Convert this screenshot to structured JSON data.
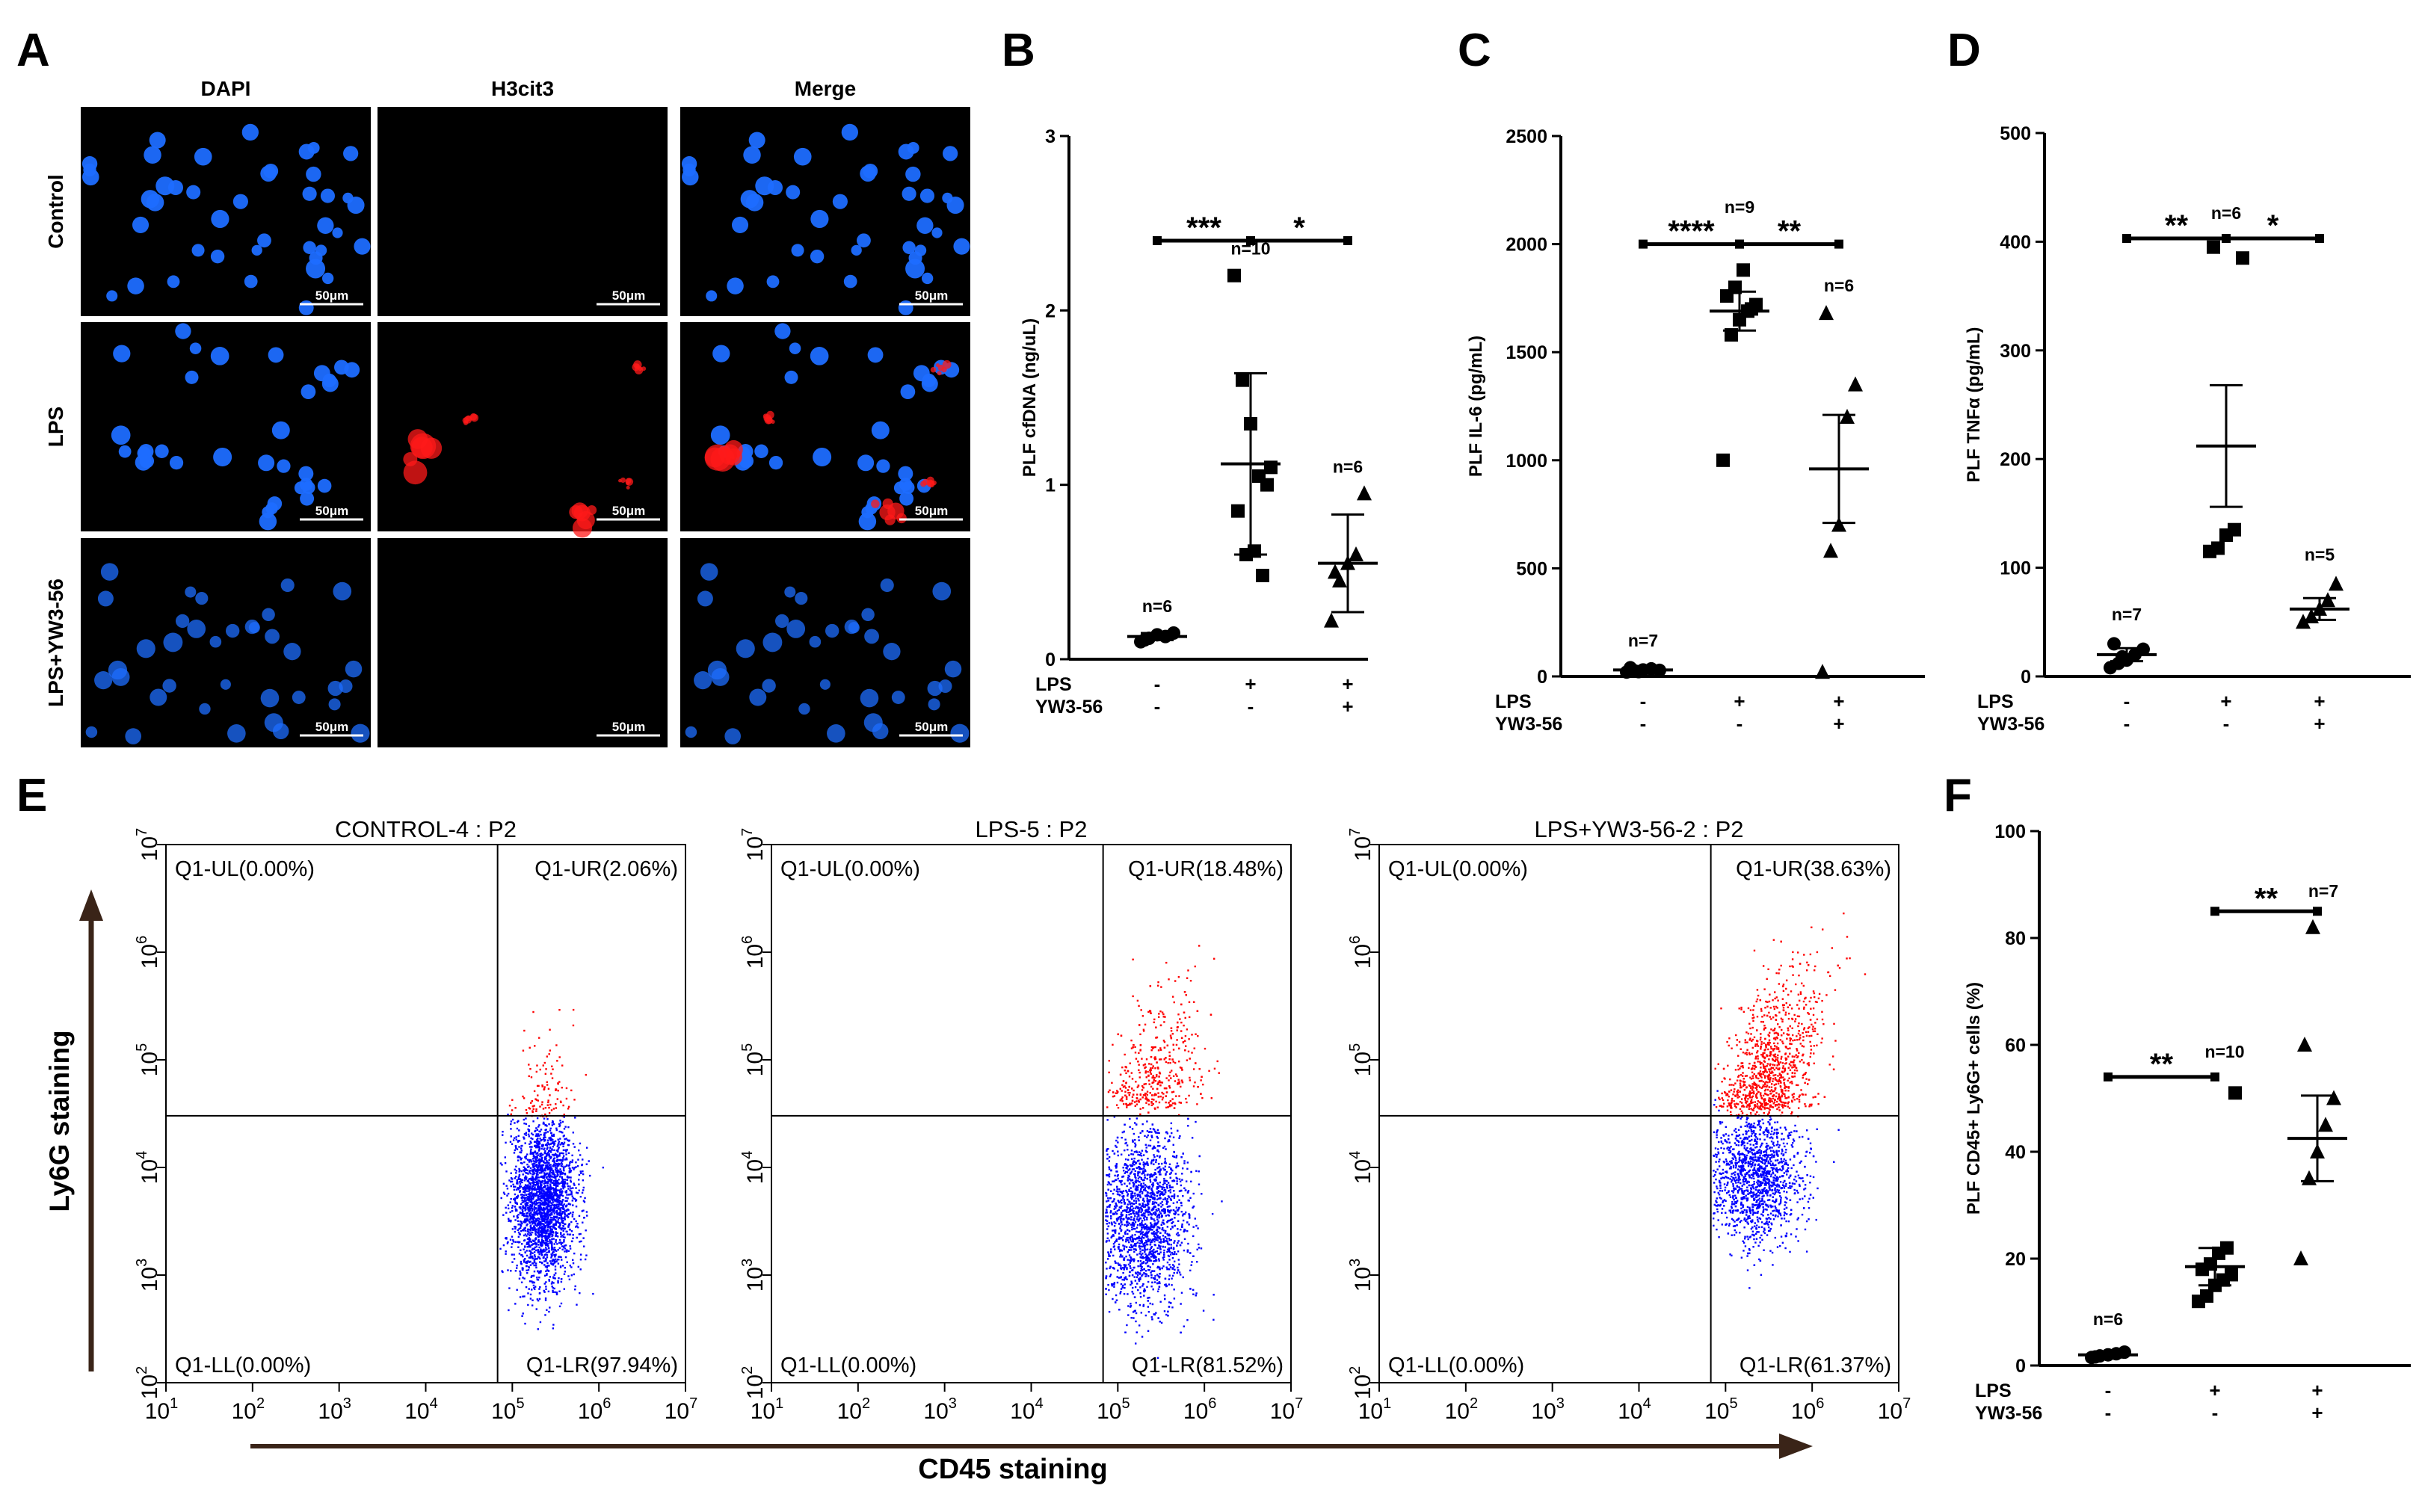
{
  "panel_letters": {
    "A": "A",
    "B": "B",
    "C": "C",
    "D": "D",
    "E": "E",
    "F": "F"
  },
  "panel_a": {
    "columns": [
      "DAPI",
      "H3cit3",
      "Merge"
    ],
    "rows": [
      "Control",
      "LPS",
      "LPS+YW3-56"
    ],
    "scale_label": "50μm",
    "colors": {
      "nuclei": "#1e6dff",
      "citrullinated_histone": "#ff1a1a",
      "background": "#000000"
    }
  },
  "treat_labels": {
    "lps": "LPS",
    "yw": "YW3-56"
  },
  "chart_data": [
    {
      "panel": "B",
      "type": "scatter",
      "ylabel": "PLF cfDNA  (ng/uL)",
      "ylim": [
        0,
        3
      ],
      "yticks": [
        0,
        1,
        2,
        3
      ],
      "lps": [
        "-",
        "+",
        "+"
      ],
      "yw": [
        "-",
        "-",
        "+"
      ],
      "n_labels": [
        "n=6",
        "n=10",
        "n=6"
      ],
      "marker_shapes": [
        "circle",
        "square",
        "triangle"
      ],
      "means": [
        0.13,
        1.12,
        0.55
      ],
      "sem": [
        0.02,
        0.52,
        0.28
      ],
      "groups": [
        [
          0.1,
          0.12,
          0.14,
          0.13,
          0.15,
          0.11
        ],
        [
          2.2,
          1.6,
          1.35,
          1.05,
          1.0,
          0.85,
          0.6,
          0.62,
          0.48,
          1.1
        ],
        [
          0.22,
          0.45,
          0.55,
          0.6,
          0.95,
          0.5
        ]
      ],
      "sig": [
        {
          "from": 0,
          "to": 1,
          "y": 2.4,
          "text": "***"
        },
        {
          "from": 1,
          "to": 2,
          "y": 2.4,
          "text": "*"
        }
      ]
    },
    {
      "panel": "C",
      "type": "scatter",
      "ylabel": "PLF IL-6 (pg/mL)",
      "ylim": [
        0,
        2500
      ],
      "yticks": [
        0,
        500,
        1000,
        1500,
        2000,
        2500
      ],
      "lps": [
        "-",
        "+",
        "+"
      ],
      "yw": [
        "-",
        "-",
        "+"
      ],
      "n_labels": [
        "n=7",
        "n=9",
        "n=6"
      ],
      "marker_shapes": [
        "circle",
        "square",
        "triangle"
      ],
      "means": [
        30,
        1690,
        960
      ],
      "sem": [
        8,
        90,
        250
      ],
      "groups": [
        [
          20,
          25,
          30,
          35,
          28,
          40,
          22
        ],
        [
          1000,
          1580,
          1650,
          1690,
          1720,
          1760,
          1800,
          1880,
          1700
        ],
        [
          20,
          580,
          700,
          1200,
          1350,
          1680
        ]
      ],
      "sig": [
        {
          "from": 0,
          "to": 1,
          "y": 2000,
          "text": "****"
        },
        {
          "from": 1,
          "to": 2,
          "y": 2000,
          "text": "**"
        }
      ]
    },
    {
      "panel": "D",
      "type": "scatter",
      "ylabel": "PLF TNFα  (pg/mL)",
      "ylim": [
        0,
        500
      ],
      "yticks": [
        0,
        100,
        200,
        300,
        400,
        500
      ],
      "lps": [
        "-",
        "+",
        "+"
      ],
      "yw": [
        "-",
        "-",
        "+"
      ],
      "n_labels": [
        "n=7",
        "n=6",
        "n=5"
      ],
      "marker_shapes": [
        "circle",
        "square",
        "triangle"
      ],
      "means": [
        20,
        212,
        62
      ],
      "sem": [
        6,
        56,
        10
      ],
      "groups": [
        [
          8,
          12,
          15,
          20,
          25,
          30,
          18
        ],
        [
          115,
          118,
          130,
          135,
          385,
          395
        ],
        [
          50,
          55,
          62,
          70,
          85
        ]
      ],
      "sig": [
        {
          "from": 0,
          "to": 1,
          "y": 403,
          "text": "**"
        },
        {
          "from": 1,
          "to": 2,
          "y": 403,
          "text": "*"
        }
      ]
    },
    {
      "panel": "F",
      "type": "scatter",
      "ylabel": "PLF CD45+ Ly6G+ cells (%)",
      "ylim": [
        0,
        100
      ],
      "yticks": [
        0,
        20,
        40,
        60,
        80,
        100
      ],
      "lps": [
        "-",
        "+",
        "+"
      ],
      "yw": [
        "-",
        "-",
        "+"
      ],
      "n_labels": [
        "n=6",
        "n=10",
        "n=7"
      ],
      "marker_shapes": [
        "circle",
        "square",
        "triangle"
      ],
      "means": [
        2,
        18.5,
        42.5
      ],
      "sem": [
        0.5,
        3.5,
        8
      ],
      "groups": [
        [
          1.5,
          1.8,
          2.0,
          2.2,
          2.5,
          1.6
        ],
        [
          12,
          13,
          15,
          16,
          17,
          18,
          19,
          21,
          22,
          51
        ],
        [
          20,
          35,
          40,
          45,
          50,
          60,
          82
        ]
      ],
      "sig": [
        {
          "from": 0,
          "to": 1,
          "y": 54,
          "text": "**"
        },
        {
          "from": 1,
          "to": 2,
          "y": 85,
          "text": "**"
        }
      ]
    },
    {
      "panel": "E",
      "type": "scatter",
      "subtype": "flow-cytometry",
      "plots": [
        {
          "title": "CONTROL-4 : P2",
          "UL": "Q1-UL(0.00%)",
          "UR": "Q1-UR(2.06%)",
          "LL": "Q1-LL(0.00%)",
          "LR": "Q1-LR(97.94%)",
          "ur_fraction": 0.0206
        },
        {
          "title": "LPS-5 : P2",
          "UL": "Q1-UL(0.00%)",
          "UR": "Q1-UR(18.48%)",
          "LL": "Q1-LL(0.00%)",
          "LR": "Q1-LR(81.52%)",
          "ur_fraction": 0.1848
        },
        {
          "title": "LPS+YW3-56-2 : P2",
          "UL": "Q1-UL(0.00%)",
          "UR": "Q1-UR(38.63%)",
          "LL": "Q1-LL(0.00%)",
          "LR": "Q1-LR(61.37%)",
          "ur_fraction": 0.3863
        }
      ],
      "x_log_range": [
        1,
        7
      ],
      "y_log_range": [
        2,
        7
      ],
      "gate_x_log": 4.83,
      "gate_y_log": 4.48,
      "xlabel": "CD45 staining",
      "ylabel": "Ly6G staining",
      "colors": {
        "positive": "#ff0000",
        "negative": "#0000ff"
      }
    }
  ]
}
